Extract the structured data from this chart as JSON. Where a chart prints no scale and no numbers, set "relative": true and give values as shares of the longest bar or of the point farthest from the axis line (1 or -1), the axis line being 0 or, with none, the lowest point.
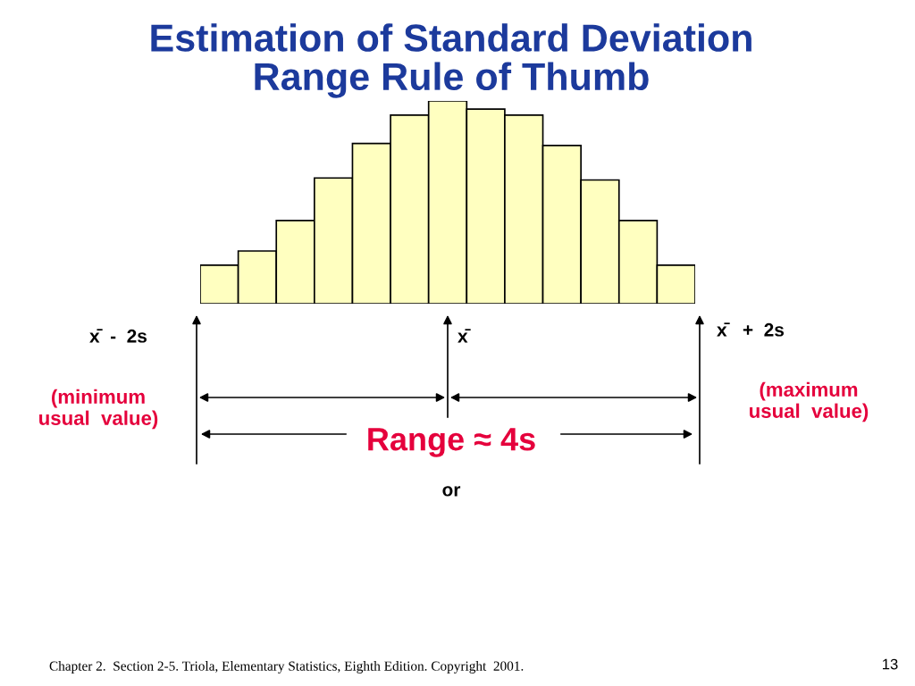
{
  "chart_data": {
    "type": "bar",
    "relative": true,
    "title": "Estimation of Standard Deviation\nRange Rule of Thumb",
    "categories": [
      null,
      null,
      null,
      null,
      null,
      null,
      null,
      null,
      null,
      null,
      null,
      null,
      null
    ],
    "values": [
      0.19,
      0.26,
      0.41,
      0.62,
      0.79,
      0.93,
      1,
      0.96,
      0.93,
      0.78,
      0.61,
      0.41,
      0.19
    ],
    "color": "#ffffc0",
    "annotations": [
      "x̄  -  2s",
      "x̄",
      "x̄   +  2s",
      "(minimum\nusual  value)",
      "(maximum\nusual  value)",
      "Range ≈ 4s",
      "or",
      "Chapter 2.  Section 2-5. Triola, Elementary Statistics, Eighth Edition. Copyright  2001.",
      "13"
    ]
  }
}
